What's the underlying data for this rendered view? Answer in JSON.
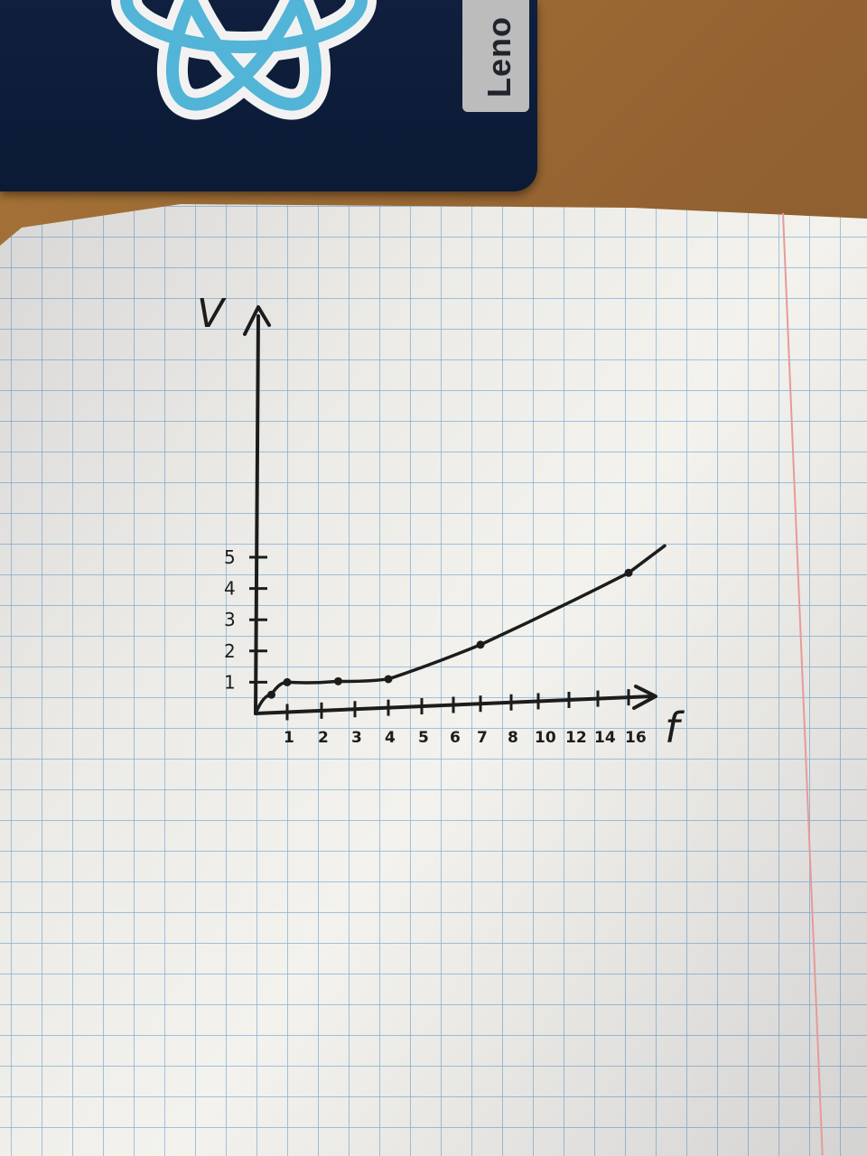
{
  "laptop": {
    "brand": "Leno"
  },
  "chart_data": {
    "type": "line",
    "xlabel": "f",
    "ylabel": "V",
    "x_ticks": [
      "1",
      "2",
      "3",
      "4",
      "5",
      "6",
      "7",
      "8",
      "10",
      "12",
      "14",
      "16"
    ],
    "y_ticks": [
      "1",
      "2",
      "3",
      "4",
      "5"
    ],
    "series": [
      {
        "x": [
          0,
          0.5,
          1,
          2.5,
          4,
          7,
          16
        ],
        "y": [
          0,
          0.6,
          1,
          1.03,
          1.1,
          2.2,
          4.5
        ],
        "marked_points": [
          [
            0.5,
            0.6
          ],
          [
            1,
            1
          ],
          [
            2.5,
            1.03
          ],
          [
            4,
            1.1
          ],
          [
            7,
            2.2
          ],
          [
            16,
            4.5
          ]
        ]
      }
    ],
    "xlim": [
      0,
      17
    ],
    "ylim": [
      0,
      5
    ],
    "colors": {
      "ink": "#1c1c1c",
      "grid": "#84b2d6",
      "paper": "#f3f2ed",
      "margin": "#e79a9a"
    }
  }
}
